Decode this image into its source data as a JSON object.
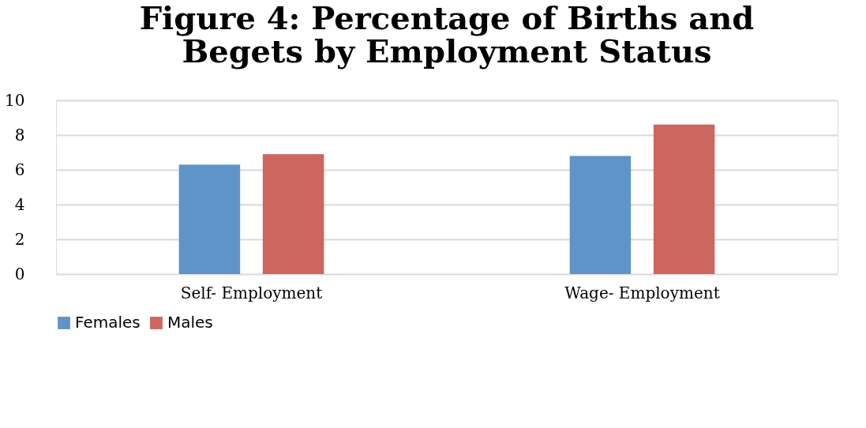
{
  "chart_data": {
    "type": "bar",
    "title": [
      "Figure 4: Percentage of Births and",
      "Begets by Employment Status"
    ],
    "categories": [
      "Self- Employment",
      "Wage- Employment"
    ],
    "series": [
      {
        "name": "Females",
        "color": "#5f94c8",
        "values": [
          6.3,
          6.8
        ]
      },
      {
        "name": "Males",
        "color": "#cc665e",
        "values": [
          6.9,
          8.6
        ]
      }
    ],
    "ylim": [
      0,
      10
    ],
    "yticks": [
      0,
      2,
      4,
      6,
      8,
      10
    ],
    "grid": "y",
    "legend": "bottom"
  }
}
